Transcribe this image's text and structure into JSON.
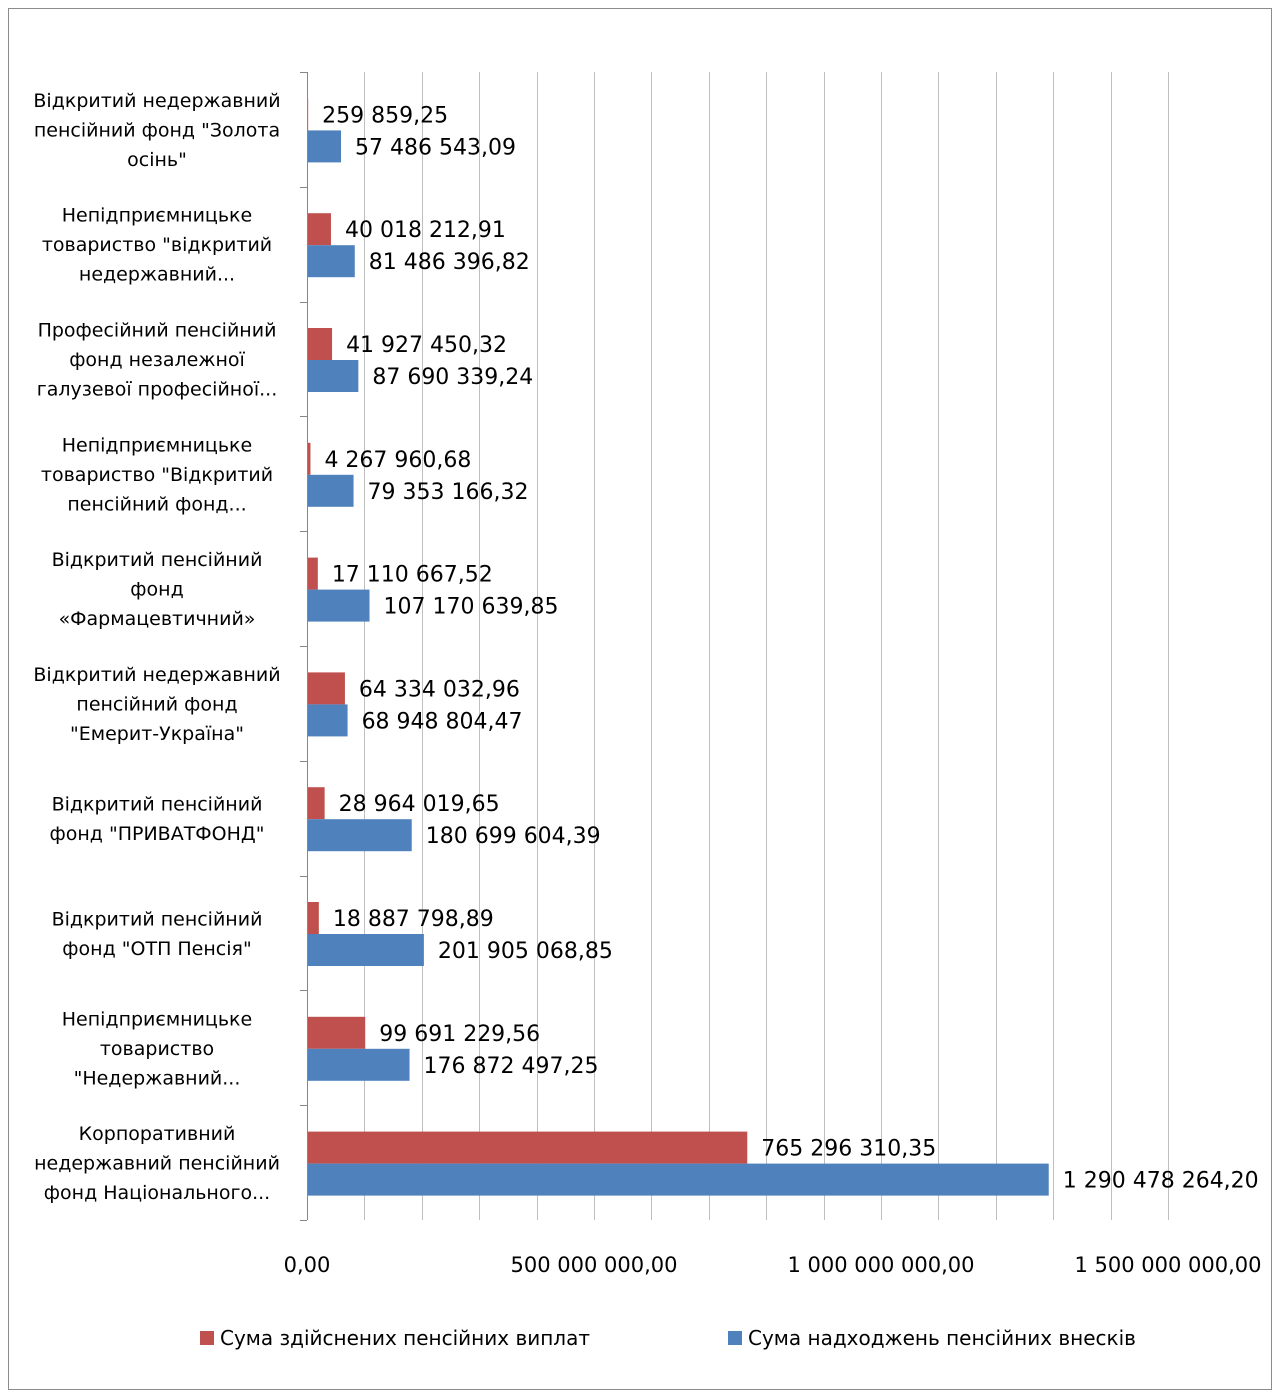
{
  "chart_data": {
    "type": "bar",
    "orientation": "horizontal",
    "categories": [
      [
        "Відкритий недержавний",
        "пенсійний фонд \"Золота",
        "осінь\""
      ],
      [
        "Непідприємницьке",
        "товариство \"відкритий",
        "недержавний..."
      ],
      [
        "Професійний пенсійний",
        "фонд незалежної",
        "галузевої професійної..."
      ],
      [
        "Непідприємницьке",
        "товариство \"Відкритий",
        "пенсійний фонд..."
      ],
      [
        "Відкритий пенсійний",
        "фонд",
        "«Фармацевтичний»"
      ],
      [
        "Відкритий недержавний",
        "пенсійний фонд",
        "\"Емерит-Україна\""
      ],
      [
        "Відкритий пенсійний",
        "фонд \"ПРИВАТФОНД\""
      ],
      [
        "Відкритий пенсійний",
        "фонд \"ОТП Пенсія\""
      ],
      [
        "Непідприємницьке",
        "товариство",
        "\"Недержавний..."
      ],
      [
        "Корпоративний",
        "недержавний пенсійний",
        "фонд Національного..."
      ]
    ],
    "series": [
      {
        "name": "Сума здійснених пенсійних виплат",
        "color": "#C0504D",
        "values": [
          259859.25,
          40018212.91,
          41927450.32,
          4267960.68,
          17110667.52,
          64334032.96,
          28964019.65,
          18887798.89,
          99691229.56,
          765296310.35
        ],
        "labels": [
          "259 859,25",
          "40 018 212,91",
          "41 927 450,32",
          "4 267 960,68",
          "17 110 667,52",
          "64 334 032,96",
          "28 964 019,65",
          "18 887 798,89",
          "99 691 229,56",
          "765 296 310,35"
        ]
      },
      {
        "name": "Сума надходжень пенсійних внесків",
        "color": "#4F81BD",
        "values": [
          57486543.09,
          81486396.82,
          87690339.24,
          79353166.32,
          107170639.85,
          68948804.47,
          180699604.39,
          201905068.85,
          176872497.25,
          1290478264.2
        ],
        "labels": [
          "57 486 543,09",
          "81 486 396,82",
          "87 690 339,24",
          "79 353 166,32",
          "107 170 639,85",
          "68 948 804,47",
          "180 699 604,39",
          "201 905 068,85",
          "176 872 497,25",
          "1 290 478 264,20"
        ]
      }
    ],
    "xlim": [
      0,
      1500000000
    ],
    "x_major_ticks": [
      0,
      500000000,
      1000000000,
      1500000000
    ],
    "x_tick_labels": [
      "0,00",
      "500 000 000,00",
      "1 000 000 000,00",
      "1 500 000 000,00"
    ],
    "x_minor_step": 100000000,
    "grid": true,
    "legend_position": "bottom"
  }
}
